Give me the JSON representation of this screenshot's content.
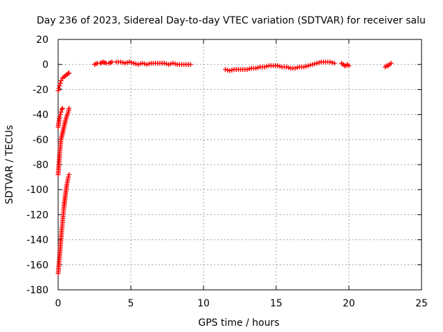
{
  "chart_data": {
    "type": "scatter",
    "title": "Day 236 of 2023, Sidereal Day-to-day VTEC variation (SDTVAR) for receiver salu",
    "xlabel": "GPS time / hours",
    "ylabel": "SDTVAR / TECUs",
    "xlim": [
      0,
      25
    ],
    "ylim": [
      -180,
      20
    ],
    "x_ticks": [
      0,
      5,
      10,
      15,
      20,
      25
    ],
    "y_ticks": [
      -180,
      -160,
      -140,
      -120,
      -100,
      -80,
      -60,
      -40,
      -20,
      0,
      20
    ],
    "grid": true,
    "marker": "plus",
    "color": "#ff0000",
    "series": [
      {
        "segments": [
          {
            "x": [
              0.0,
              0.05,
              0.1,
              0.15,
              0.2,
              0.3,
              0.4,
              0.5,
              0.6,
              0.7,
              0.75
            ],
            "y": [
              -21,
              -19,
              -17,
              -15,
              -13,
              -11,
              -10,
              -9,
              -8,
              -7,
              -7
            ]
          },
          {
            "x": [
              0.0,
              0.05,
              0.1,
              0.15,
              0.2,
              0.25,
              0.3
            ],
            "y": [
              -50,
              -46,
              -42,
              -40,
              -38,
              -36,
              -35
            ]
          },
          {
            "x": [
              0.0,
              0.05,
              0.1,
              0.15,
              0.2,
              0.3,
              0.4,
              0.5,
              0.6,
              0.7,
              0.75
            ],
            "y": [
              -88,
              -80,
              -72,
              -66,
              -60,
              -55,
              -50,
              -45,
              -41,
              -38,
              -35
            ]
          },
          {
            "x": [
              0.0,
              0.05,
              0.1,
              0.15,
              0.2,
              0.25,
              0.3,
              0.35,
              0.4,
              0.45,
              0.5,
              0.55,
              0.6,
              0.65,
              0.7,
              0.75
            ],
            "y": [
              -167,
              -160,
              -153,
              -146,
              -139,
              -132,
              -126,
              -120,
              -114,
              -109,
              -104,
              -100,
              -96,
              -93,
              -90,
              -88
            ]
          },
          {
            "x": [
              2.5,
              2.7,
              2.9,
              3.1,
              3.3,
              3.5,
              3.7
            ],
            "y": [
              0,
              1,
              1,
              2,
              1,
              1,
              2
            ]
          },
          {
            "x": [
              4.0,
              4.3,
              4.6,
              4.9,
              5.2,
              5.5,
              5.8,
              6.1,
              6.4,
              6.7,
              7.0,
              7.3,
              7.6,
              7.9,
              8.2,
              8.5,
              8.8,
              9.1
            ],
            "y": [
              2,
              2,
              1,
              2,
              1,
              0,
              1,
              0,
              1,
              1,
              1,
              1,
              0,
              1,
              0,
              0,
              0,
              0
            ]
          },
          {
            "x": [
              11.5,
              11.8,
              12.1,
              12.4,
              12.7,
              13.0,
              13.3,
              13.6,
              13.9,
              14.2,
              14.5,
              14.8,
              15.1,
              15.4,
              15.7,
              16.0,
              16.3,
              16.6,
              16.9,
              17.2,
              17.5,
              17.8,
              18.1,
              18.4,
              18.7,
              19.0
            ],
            "y": [
              -4,
              -5,
              -4,
              -4,
              -4,
              -4,
              -3,
              -3,
              -2,
              -2,
              -1,
              -1,
              -1,
              -2,
              -2,
              -3,
              -3,
              -2,
              -2,
              -1,
              0,
              1,
              2,
              2,
              2,
              1
            ]
          },
          {
            "x": [
              19.5,
              19.6,
              19.7,
              19.8,
              19.9,
              20.0
            ],
            "y": [
              1,
              0,
              -1,
              -1,
              0,
              -1
            ]
          },
          {
            "x": [
              22.5,
              22.6,
              22.7,
              22.8,
              22.9
            ],
            "y": [
              -2,
              -1,
              -1,
              0,
              1
            ]
          }
        ]
      }
    ]
  }
}
